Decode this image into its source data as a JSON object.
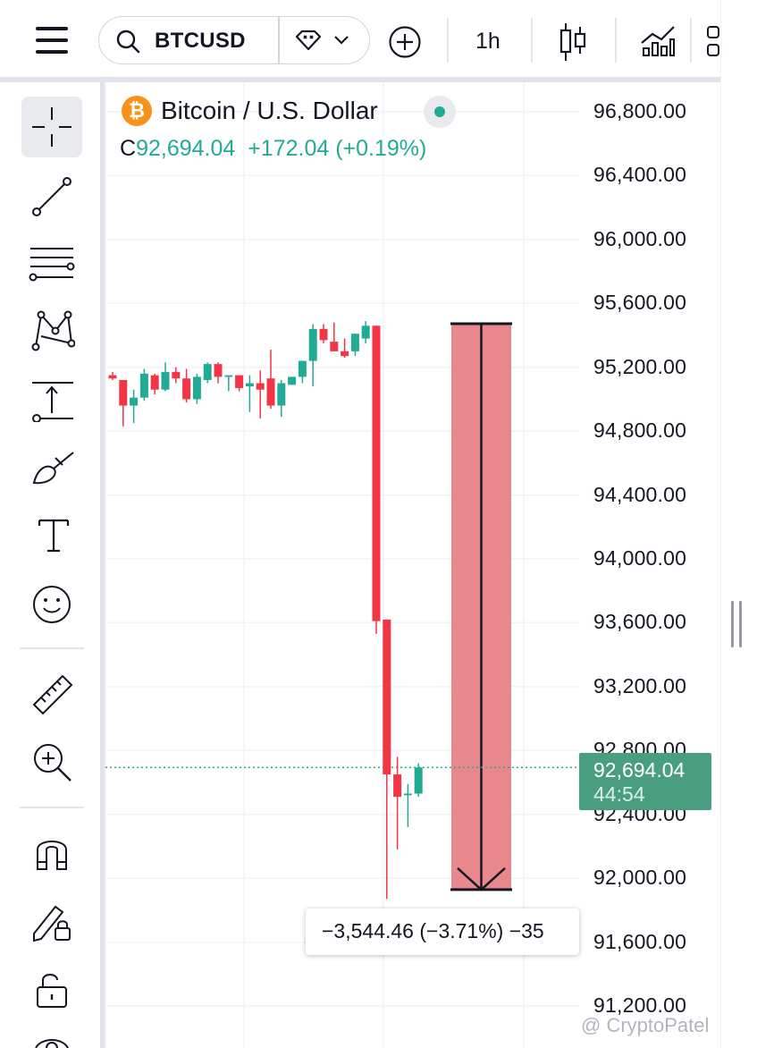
{
  "header": {
    "menu_icon": "hamburger-icon",
    "search_icon": "search-icon",
    "symbol": "BTCUSD",
    "exchange_icon": "diamond-icon",
    "dropdown_icon": "chevron-down-icon",
    "compare_icon": "plus-circle-icon",
    "interval": "1h",
    "chart_type_icon": "candles-icon",
    "indicators_icon": "indicators-icon"
  },
  "left_toolbar": {
    "tools": [
      "crosshair-icon",
      "trend-line-icon",
      "fib-levels-icon",
      "pattern-icon",
      "projection-icon",
      "brush-icon",
      "text-icon",
      "emoji-icon",
      "ruler-icon",
      "zoom-in-icon",
      "magnet-icon",
      "lock-drawing-icon",
      "unlock-icon",
      "eye-icon"
    ]
  },
  "legend": {
    "title": "Bitcoin / U.S. Dollar",
    "close_label": "C",
    "close_value": "92,694.04",
    "change": "+172.04 (+0.19%)"
  },
  "price_axis": {
    "ticks": [
      "96,800.00",
      "96,400.00",
      "96,000.00",
      "95,600.00",
      "95,200.00",
      "94,800.00",
      "94,400.00",
      "94,000.00",
      "93,600.00",
      "93,200.00",
      "92,800.00",
      "92,400.00",
      "92,000.00",
      "91,600.00",
      "91,200.00"
    ]
  },
  "last_price": {
    "price": "92,694.04",
    "countdown": "44:54"
  },
  "measure": {
    "label": "−3,544.46 (−3.71%) −35"
  },
  "watermark": "@ CryptoPatel",
  "colors": {
    "up": "#22ab94",
    "down": "#f23645",
    "measure_fill": "#e8878c",
    "price_tag": "#4a9e80"
  },
  "chart_data": {
    "type": "candlestick",
    "interval": "1h",
    "ylim": [
      91200,
      96800
    ],
    "last_price": 92694.04,
    "measure": {
      "from": 95473.12,
      "to": 91928.66,
      "change": -3544.46,
      "change_pct": -3.71
    },
    "candles": [
      {
        "o": 95150,
        "h": 95170,
        "l": 95120,
        "c": 95130
      },
      {
        "o": 95120,
        "h": 95120,
        "l": 94830,
        "c": 94960
      },
      {
        "o": 94960,
        "h": 95060,
        "l": 94850,
        "c": 95010
      },
      {
        "o": 95010,
        "h": 95190,
        "l": 94990,
        "c": 95160
      },
      {
        "o": 95150,
        "h": 95160,
        "l": 95030,
        "c": 95060
      },
      {
        "o": 95060,
        "h": 95230,
        "l": 95050,
        "c": 95170
      },
      {
        "o": 95170,
        "h": 95200,
        "l": 95100,
        "c": 95130
      },
      {
        "o": 95130,
        "h": 95190,
        "l": 94980,
        "c": 95000
      },
      {
        "o": 95000,
        "h": 95160,
        "l": 94970,
        "c": 95140
      },
      {
        "o": 95120,
        "h": 95230,
        "l": 95100,
        "c": 95220
      },
      {
        "o": 95220,
        "h": 95230,
        "l": 95100,
        "c": 95140
      },
      {
        "o": 95140,
        "h": 95150,
        "l": 95050,
        "c": 95150
      },
      {
        "o": 95150,
        "h": 95150,
        "l": 95050,
        "c": 95070
      },
      {
        "o": 95080,
        "h": 95150,
        "l": 94920,
        "c": 95100
      },
      {
        "o": 95100,
        "h": 95180,
        "l": 94880,
        "c": 95060
      },
      {
        "o": 95130,
        "h": 95310,
        "l": 94940,
        "c": 94960
      },
      {
        "o": 94960,
        "h": 95120,
        "l": 94890,
        "c": 95100
      },
      {
        "o": 95090,
        "h": 95140,
        "l": 95090,
        "c": 95140
      },
      {
        "o": 95140,
        "h": 95230,
        "l": 95100,
        "c": 95240
      },
      {
        "o": 95240,
        "h": 95470,
        "l": 95080,
        "c": 95440
      },
      {
        "o": 95440,
        "h": 95470,
        "l": 95350,
        "c": 95370
      },
      {
        "o": 95360,
        "h": 95480,
        "l": 95340,
        "c": 95300
      },
      {
        "o": 95300,
        "h": 95380,
        "l": 95260,
        "c": 95270
      },
      {
        "o": 95300,
        "h": 95410,
        "l": 95270,
        "c": 95410
      },
      {
        "o": 95380,
        "h": 95490,
        "l": 95350,
        "c": 95460
      },
      {
        "o": 95460,
        "h": 95460,
        "l": 93530,
        "c": 93610
      },
      {
        "o": 93620,
        "h": 93620,
        "l": 91870,
        "c": 92650
      },
      {
        "o": 92650,
        "h": 92760,
        "l": 92180,
        "c": 92510
      },
      {
        "o": 92520,
        "h": 92590,
        "l": 92320,
        "c": 92530
      },
      {
        "o": 92530,
        "h": 92720,
        "l": 92510,
        "c": 92694.04
      }
    ]
  }
}
